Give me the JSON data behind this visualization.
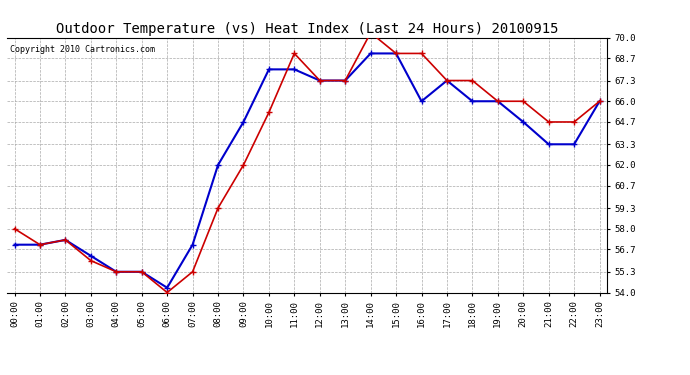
{
  "title": "Outdoor Temperature (vs) Heat Index (Last 24 Hours) 20100915",
  "copyright": "Copyright 2010 Cartronics.com",
  "hours": [
    "00:00",
    "01:00",
    "02:00",
    "03:00",
    "04:00",
    "05:00",
    "06:00",
    "07:00",
    "08:00",
    "09:00",
    "10:00",
    "11:00",
    "12:00",
    "13:00",
    "14:00",
    "15:00",
    "16:00",
    "17:00",
    "18:00",
    "19:00",
    "20:00",
    "21:00",
    "22:00",
    "23:00"
  ],
  "temp": [
    58.0,
    57.0,
    57.3,
    56.0,
    55.3,
    55.3,
    54.0,
    55.3,
    59.3,
    62.0,
    65.3,
    69.0,
    67.3,
    67.3,
    70.3,
    69.0,
    69.0,
    67.3,
    67.3,
    66.0,
    66.0,
    64.7,
    64.7,
    66.0
  ],
  "heat_index": [
    57.0,
    57.0,
    57.3,
    56.3,
    55.3,
    55.3,
    54.3,
    57.0,
    62.0,
    64.7,
    68.0,
    68.0,
    67.3,
    67.3,
    69.0,
    69.0,
    66.0,
    67.3,
    66.0,
    66.0,
    64.7,
    63.3,
    63.3,
    66.0
  ],
  "temp_color": "#cc0000",
  "heat_index_color": "#0000cc",
  "ylim": [
    54.0,
    70.0
  ],
  "yticks": [
    54.0,
    55.3,
    56.7,
    58.0,
    59.3,
    60.7,
    62.0,
    63.3,
    64.7,
    66.0,
    67.3,
    68.7,
    70.0
  ],
  "bg_color": "#ffffff",
  "grid_color": "#aaaaaa",
  "title_fontsize": 10,
  "copyright_fontsize": 6,
  "tick_fontsize": 6.5
}
